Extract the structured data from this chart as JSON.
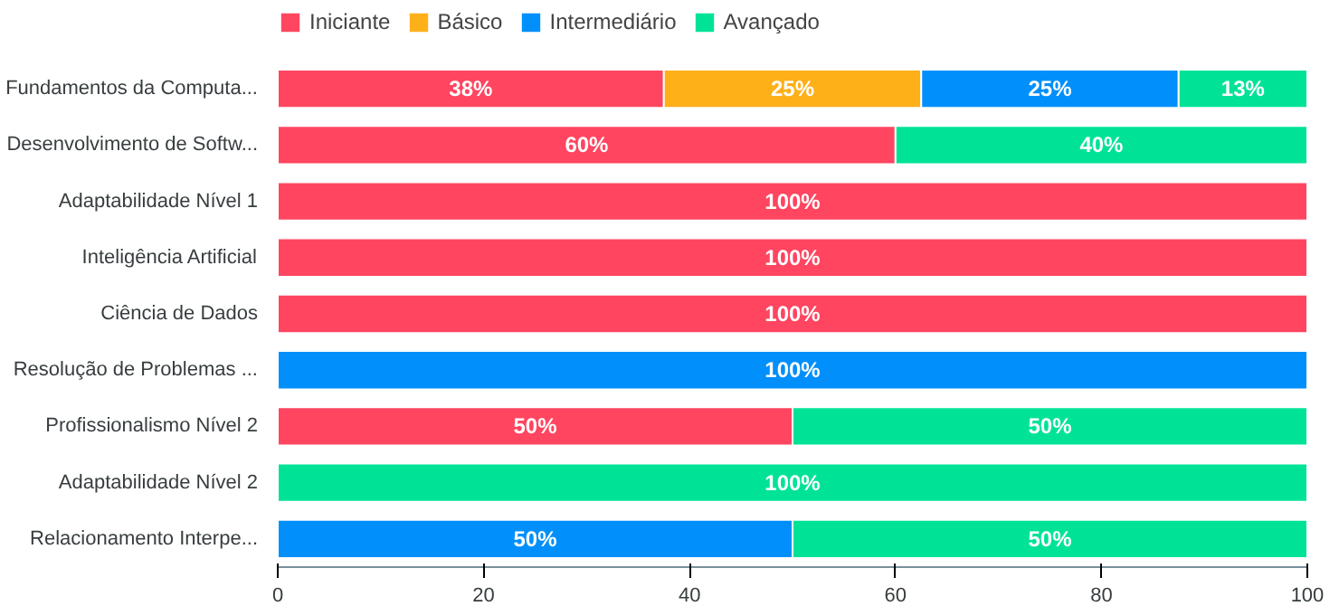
{
  "chart_data": {
    "type": "bar",
    "orientation": "horizontal",
    "stacked": true,
    "categories": [
      "Fundamentos da Computa...",
      "Desenvolvimento de Softw...",
      "Adaptabilidade Nível 1",
      "Inteligência Artificial",
      "Ciência de Dados",
      "Resolução de Problemas ...",
      "Profissionalismo Nível 2",
      "Adaptabilidade Nível 2",
      "Relacionamento Interpe..."
    ],
    "series": [
      {
        "name": "Iniciante",
        "color": "#ff4560",
        "values": [
          37.5,
          60,
          100,
          100,
          100,
          null,
          50,
          null,
          null
        ],
        "value_labels": [
          "38%",
          "60%",
          "100%",
          "100%",
          "100%",
          null,
          "50%",
          null,
          null
        ]
      },
      {
        "name": "Básico",
        "color": "#feb019",
        "values": [
          25,
          null,
          null,
          null,
          null,
          null,
          null,
          null,
          null
        ],
        "value_labels": [
          "25%",
          null,
          null,
          null,
          null,
          null,
          null,
          null,
          null
        ]
      },
      {
        "name": "Intermediário",
        "color": "#008ffb",
        "values": [
          25,
          null,
          null,
          null,
          null,
          100,
          null,
          null,
          50
        ],
        "value_labels": [
          "25%",
          null,
          null,
          null,
          null,
          "100%",
          null,
          null,
          "50%"
        ]
      },
      {
        "name": "Avançado",
        "color": "#00e396",
        "values": [
          12.5,
          40,
          null,
          null,
          null,
          null,
          50,
          100,
          50
        ],
        "value_labels": [
          "13%",
          "40%",
          null,
          null,
          null,
          null,
          "50%",
          "100%",
          "50%"
        ]
      }
    ],
    "xlim": [
      0,
      100
    ],
    "xticks": [
      0,
      20,
      40,
      60,
      80,
      100
    ],
    "grid": false,
    "legend": "top left"
  }
}
